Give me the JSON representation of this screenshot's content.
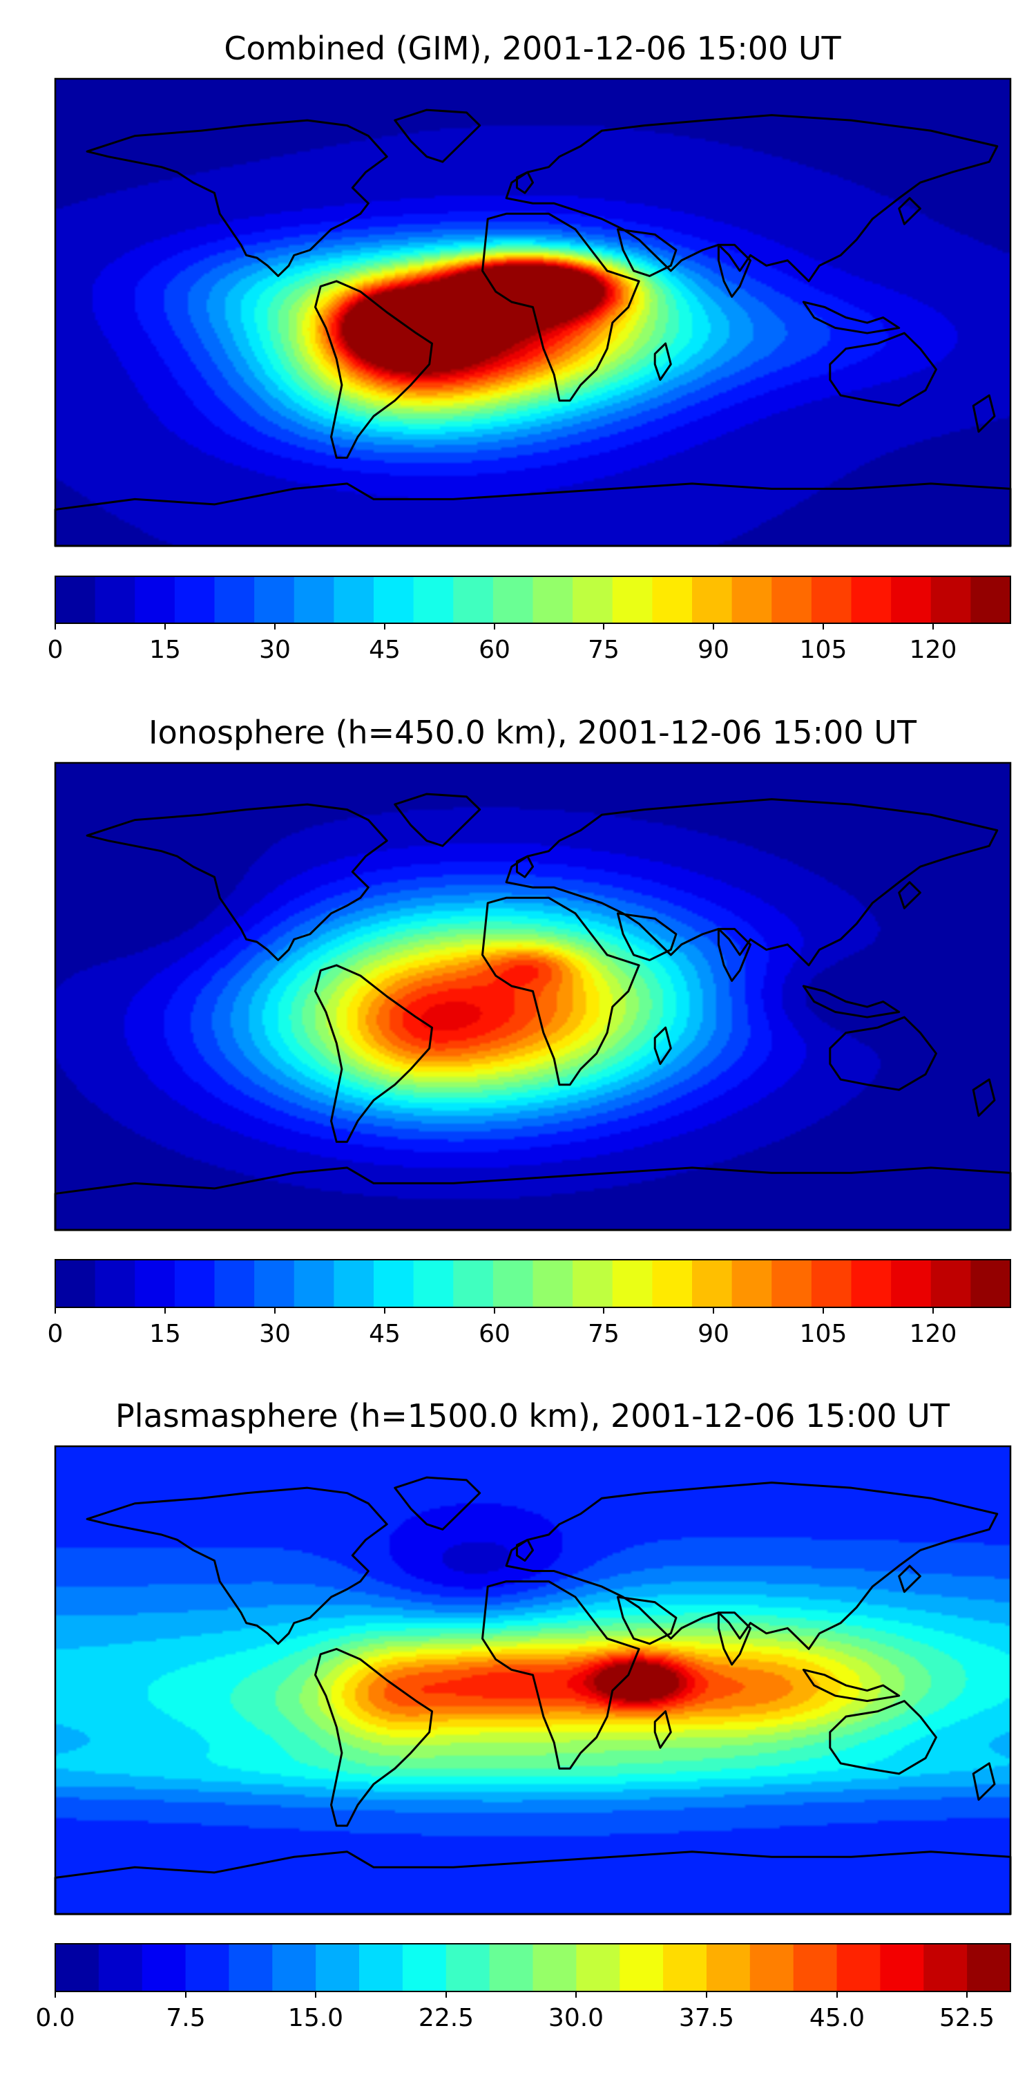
{
  "chart_data": [
    {
      "type": "heatmap",
      "title": "Combined (GIM), 2001-12-06 15:00 UT",
      "xlabel": "",
      "ylabel": "",
      "vmin": 0,
      "vmax": 127.5,
      "levels": 24,
      "colorbar_ticks": [
        "0",
        "15",
        "30",
        "45",
        "60",
        "75",
        "90",
        "105",
        "120"
      ],
      "colorbar_tick_values": [
        0,
        15,
        30,
        45,
        60,
        75,
        90,
        105,
        120
      ],
      "features": [
        {
          "lon": 0,
          "lat": 10,
          "value": 115,
          "slon": 32,
          "slat": 11
        },
        {
          "lon": -50,
          "lat": -5,
          "value": 85,
          "slon": 22,
          "slat": 13
        },
        {
          "lon": -25,
          "lat": -5,
          "value": 30,
          "slon": 60,
          "slat": 25
        },
        {
          "lon": -50,
          "lat": -25,
          "value": 25,
          "slon": 40,
          "slat": 18
        },
        {
          "lon": -90,
          "lat": 10,
          "value": 20,
          "slon": 60,
          "slat": 20
        },
        {
          "lon": 110,
          "lat": -10,
          "value": 10,
          "slon": 60,
          "slat": 20
        }
      ]
    },
    {
      "type": "heatmap",
      "title": "Ionosphere  (h=450.0 km), 2001-12-06 15:00 UT",
      "xlabel": "",
      "ylabel": "",
      "vmin": 0,
      "vmax": 127.5,
      "levels": 24,
      "colorbar_ticks": [
        "0",
        "15",
        "30",
        "45",
        "60",
        "75",
        "90",
        "105",
        "120"
      ],
      "colorbar_tick_values": [
        0,
        15,
        30,
        45,
        60,
        75,
        90,
        105,
        120
      ],
      "features": [
        {
          "lon": -20,
          "lat": 0,
          "value": 55,
          "slon": 90,
          "slat": 40
        },
        {
          "lon": 0,
          "lat": 12,
          "value": 20,
          "slon": 18,
          "slat": 8
        },
        {
          "lon": -45,
          "lat": -15,
          "value": 12,
          "slon": 25,
          "slat": 20
        },
        {
          "lon": -130,
          "lat": 30,
          "value": -8,
          "slon": 40,
          "slat": 25
        },
        {
          "lon": 110,
          "lat": 0,
          "value": -10,
          "slon": 40,
          "slat": 15
        }
      ]
    },
    {
      "type": "heatmap",
      "title": "Plasmasphere (h=1500.0 km), 2001-12-06 15:00 UT",
      "xlabel": "",
      "ylabel": "",
      "vmin": 0,
      "vmax": 55,
      "levels": 22,
      "colorbar_ticks": [
        "0.0",
        "7.5",
        "15.0",
        "22.5",
        "30.0",
        "37.5",
        "45.0",
        "52.5"
      ],
      "colorbar_tick_values": [
        0,
        7.5,
        15,
        22.5,
        30,
        37.5,
        45,
        52.5
      ],
      "features": [
        {
          "lon": 40,
          "lat": 0,
          "value": 22,
          "slon": 18,
          "slat": 10
        },
        {
          "lon": -10,
          "lat": 0,
          "value": 12,
          "slon": 40,
          "slat": 15
        },
        {
          "lon": -55,
          "lat": -5,
          "value": 10,
          "slon": 25,
          "slat": 20
        },
        {
          "lon": 90,
          "lat": -5,
          "value": 12,
          "slon": 50,
          "slat": 20
        },
        {
          "lon": -20,
          "lat": 40,
          "value": -8,
          "slon": 40,
          "slat": 20
        }
      ]
    }
  ],
  "colormap": [
    "#00008f",
    "#0000ff",
    "#007fff",
    "#00ffff",
    "#7fff7f",
    "#ffff00",
    "#ff7f00",
    "#ff0000",
    "#7f0000"
  ],
  "coastline_color": "#000000"
}
